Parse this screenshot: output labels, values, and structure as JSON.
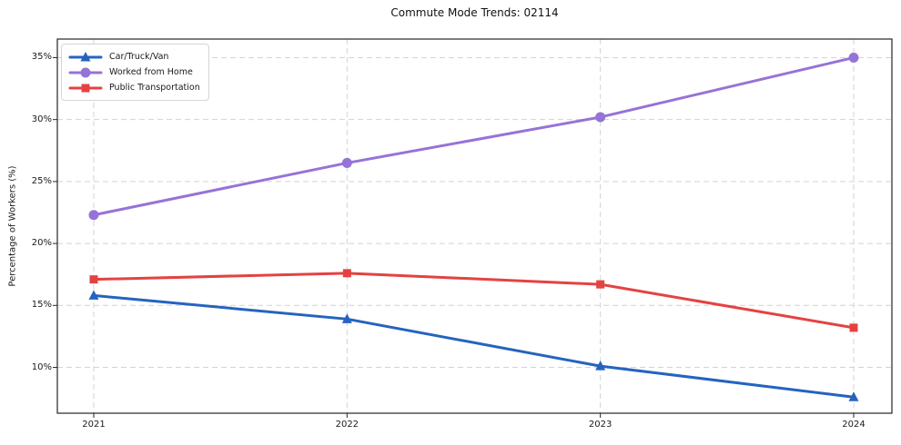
{
  "title": "Commute Mode Trends: 02114",
  "chart_data": {
    "type": "line",
    "title": "Commute Mode Trends: 02114",
    "xlabel": "",
    "ylabel": "Percentage of Workers (%)",
    "categories": [
      "2021",
      "2022",
      "2023",
      "2024"
    ],
    "series": [
      {
        "name": "Car/Truck/Van",
        "values": [
          15.8,
          13.9,
          10.1,
          7.6
        ],
        "color": "#2563bf",
        "marker": "triangle"
      },
      {
        "name": "Worked from Home",
        "values": [
          22.3,
          26.5,
          30.2,
          35.0
        ],
        "color": "#9673d7",
        "marker": "circle"
      },
      {
        "name": "Public Transportation",
        "values": [
          17.1,
          17.6,
          16.7,
          13.2
        ],
        "color": "#e44242",
        "marker": "square"
      }
    ],
    "ylim": [
      6.3,
      36.5
    ],
    "yticks": [
      10,
      15,
      20,
      25,
      30,
      35
    ],
    "ytick_labels": [
      "10%",
      "15%",
      "20%",
      "25%",
      "30%",
      "35%"
    ],
    "grid": true,
    "legend_position": "upper left"
  }
}
